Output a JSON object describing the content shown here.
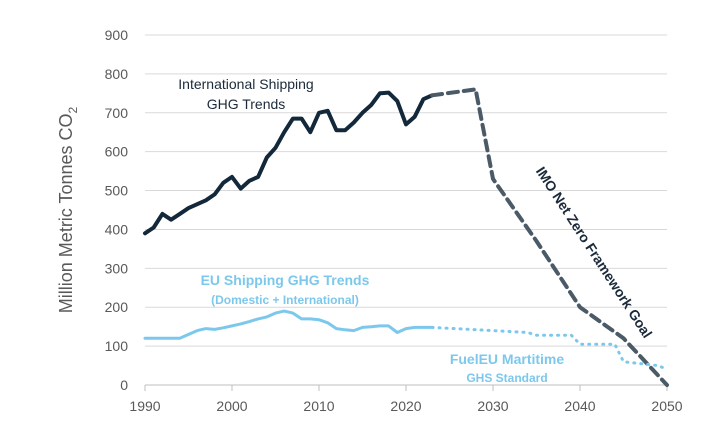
{
  "chart_data": {
    "type": "line",
    "title": "",
    "xlabel": "",
    "ylabel": "Million Metric Tonnes CO",
    "ylabel_subscript": "2",
    "xlim": [
      1990,
      2050
    ],
    "ylim": [
      0,
      900
    ],
    "x_ticks": [
      1990,
      2000,
      2010,
      2020,
      2030,
      2040,
      2050
    ],
    "y_ticks": [
      0,
      100,
      200,
      300,
      400,
      500,
      600,
      700,
      800,
      900
    ],
    "grid": "horizontal",
    "colors": {
      "international": "#13283a",
      "imo_goal": "#4a5a66",
      "eu": "#7cc8ec"
    },
    "series": [
      {
        "key": "international",
        "style": "solid",
        "x": [
          1990,
          1991,
          1992,
          1993,
          1994,
          1995,
          1996,
          1997,
          1998,
          1999,
          2000,
          2001,
          2002,
          2003,
          2004,
          2005,
          2006,
          2007,
          2008,
          2009,
          2010,
          2011,
          2012,
          2013,
          2014,
          2015,
          2016,
          2017,
          2018,
          2019,
          2020,
          2021,
          2022,
          2023
        ],
        "y": [
          390,
          405,
          440,
          425,
          440,
          455,
          465,
          475,
          490,
          520,
          535,
          505,
          525,
          535,
          585,
          610,
          650,
          685,
          685,
          650,
          700,
          705,
          655,
          655,
          675,
          700,
          720,
          750,
          752,
          730,
          670,
          690,
          735,
          745
        ]
      },
      {
        "key": "imo_goal",
        "style": "dashed",
        "x": [
          2023,
          2028,
          2030,
          2035,
          2040,
          2045,
          2050
        ],
        "y": [
          745,
          760,
          530,
          370,
          200,
          120,
          0
        ]
      },
      {
        "key": "eu",
        "style": "solid",
        "x": [
          1990,
          1994,
          1996,
          1997,
          1998,
          1999,
          2000,
          2001,
          2002,
          2003,
          2004,
          2005,
          2006,
          2007,
          2008,
          2009,
          2010,
          2011,
          2012,
          2013,
          2014,
          2015,
          2016,
          2017,
          2018,
          2019,
          2020,
          2021,
          2022,
          2023
        ],
        "y": [
          120,
          120,
          140,
          145,
          143,
          147,
          152,
          157,
          163,
          170,
          175,
          185,
          190,
          185,
          170,
          170,
          168,
          160,
          145,
          142,
          140,
          148,
          150,
          152,
          152,
          135,
          145,
          148,
          148,
          148
        ]
      },
      {
        "key": "fueleu",
        "style": "dotted",
        "x": [
          2023,
          2030,
          2034,
          2035,
          2039,
          2040,
          2044,
          2045,
          2049,
          2050
        ],
        "y": [
          148,
          140,
          135,
          128,
          128,
          105,
          105,
          60,
          50,
          40
        ]
      }
    ],
    "annotations": {
      "international": [
        "International Shipping",
        "GHG Trends"
      ],
      "imo_goal": "IMO Net Zero Framework Goal",
      "eu": [
        "EU Shipping GHG Trends",
        "(Domestic + International)"
      ],
      "fueleu": [
        "FuelEU Martitime",
        "GHS Standard"
      ]
    }
  }
}
